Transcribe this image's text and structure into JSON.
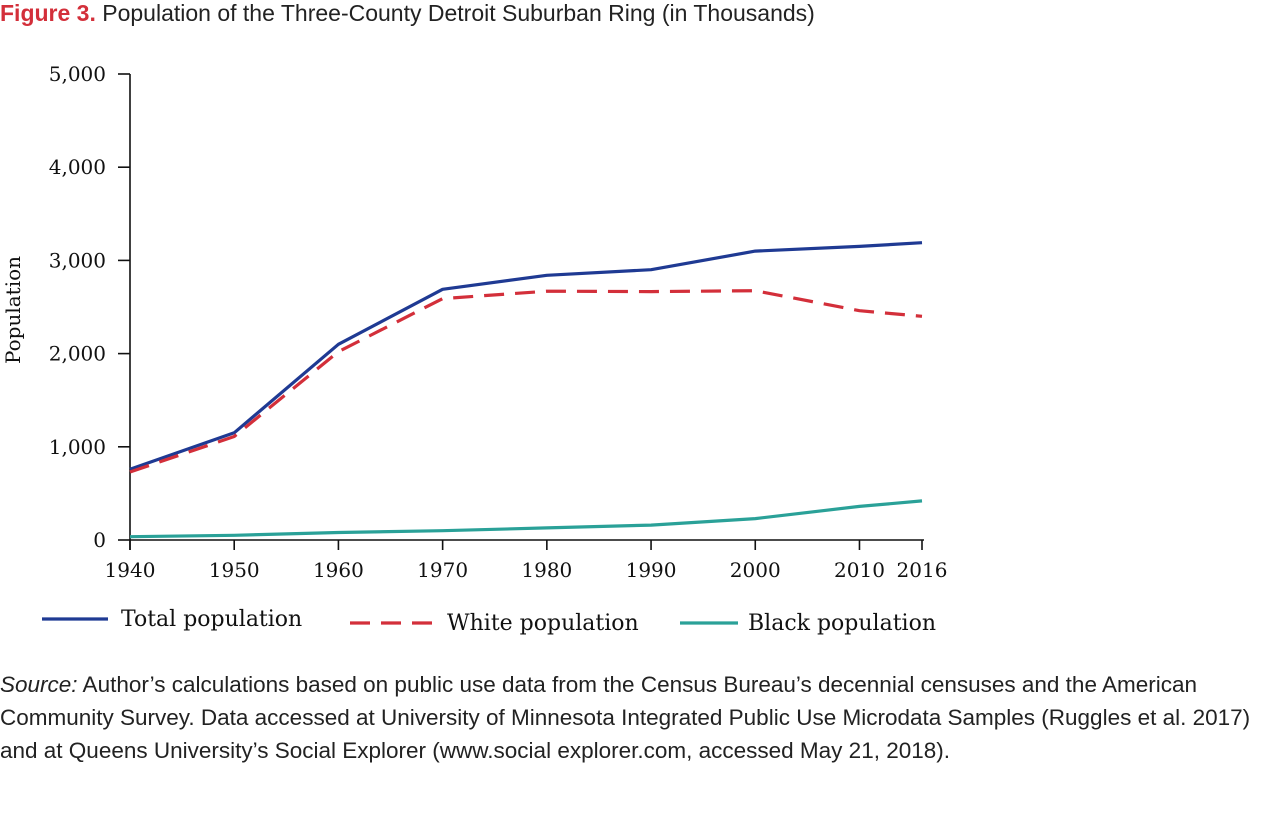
{
  "figure": {
    "label": "Figure 3.",
    "title": "Population of the Three-County Detroit Suburban Ring (in Thousands)"
  },
  "chart_data": {
    "type": "line",
    "title": "Population of the Three-County Detroit Suburban Ring (in Thousands)",
    "xlabel": "",
    "ylabel": "Population",
    "x": [
      1940,
      1950,
      1960,
      1970,
      1980,
      1990,
      2000,
      2010,
      2016
    ],
    "xlim": [
      1940,
      2016
    ],
    "ylim": [
      0,
      5000
    ],
    "yticks": [
      0,
      1000,
      2000,
      3000,
      4000,
      5000
    ],
    "ytick_labels": [
      "0",
      "1,000",
      "2,000",
      "3,000",
      "4,000",
      "5,000"
    ],
    "xtick_labels": [
      "1940",
      "1950",
      "1960",
      "1970",
      "1980",
      "1990",
      "2000",
      "2010",
      "2016"
    ],
    "grid": false,
    "legend_position": "bottom",
    "series": [
      {
        "name": "Total population",
        "color": "#1f3a93",
        "dash": "solid",
        "values": [
          760,
          1150,
          2100,
          2690,
          2840,
          2900,
          3100,
          3150,
          3190
        ]
      },
      {
        "name": "White population",
        "color": "#d32f3a",
        "dash": "dashed",
        "values": [
          730,
          1110,
          2020,
          2590,
          2670,
          2665,
          2675,
          2460,
          2400
        ]
      },
      {
        "name": "Black population",
        "color": "#2aa198",
        "dash": "solid",
        "values": [
          35,
          50,
          80,
          100,
          130,
          160,
          230,
          360,
          420
        ]
      }
    ]
  },
  "source": {
    "prefix": "Source:",
    "text": " Author’s calculations based on public use data from the Census Bureau’s decennial censuses and the American Community Survey. Data accessed at University of Minnesota Integrated Public Use Microdata Samples (Ruggles et al. 2017) and at Queens University’s Social Explorer (www.social explorer.com, accessed May 21, 2018)."
  }
}
